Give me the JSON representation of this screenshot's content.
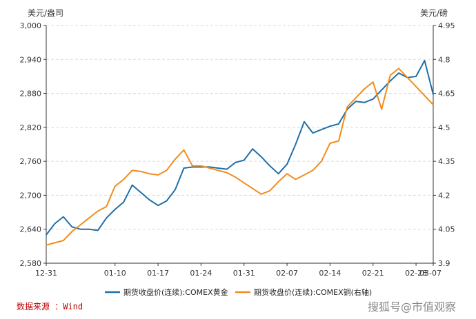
{
  "chart_data": {
    "type": "line",
    "title": "",
    "left_unit": "美元/盎司",
    "right_unit": "美元/磅",
    "source": "数据来源 ：Wind",
    "watermark": "搜狐号@市值观察",
    "x_ticks": [
      "12-31",
      "01-10",
      "01-17",
      "01-24",
      "01-31",
      "02-07",
      "02-14",
      "02-21",
      "02-28",
      "03-07"
    ],
    "x_count": 46,
    "x_tick_index": [
      0,
      8,
      13,
      18,
      23,
      28,
      33,
      38,
      43,
      45
    ],
    "y_left": {
      "min": 2580,
      "max": 3000,
      "ticks": [
        "2,580",
        "2,640",
        "2,700",
        "2,760",
        "2,820",
        "2,880",
        "2,940",
        "3,000"
      ]
    },
    "y_right": {
      "min": 3.9,
      "max": 4.95,
      "ticks": [
        "3.9",
        "4.05",
        "4.2",
        "4.35",
        "4.5",
        "4.65",
        "4.8",
        "4.95"
      ]
    },
    "grid": true,
    "legend_position": "bottom",
    "colors": {
      "gold": "#1f6fa8",
      "copper": "#f28c1c"
    },
    "series": [
      {
        "name": "期货收盘价(连续):COMEX黄金",
        "axis": "left",
        "color": "#1f6fa8",
        "values": [
          2630,
          2650,
          2662,
          2644,
          2640,
          2640,
          2638,
          2660,
          2675,
          2688,
          2718,
          2705,
          2692,
          2682,
          2690,
          2710,
          2748,
          2750,
          2750,
          2750,
          2748,
          2746,
          2758,
          2762,
          2782,
          2768,
          2752,
          2738,
          2755,
          2790,
          2830,
          2810,
          2816,
          2822,
          2826,
          2852,
          2866,
          2864,
          2870,
          2886,
          2902,
          2916,
          2908,
          2910,
          2938,
          2878
        ]
      },
      {
        "name": "期货收盘价(连续):COMEX铜(右轴)",
        "axis": "right",
        "color": "#f28c1c",
        "values": [
          3.98,
          3.99,
          4.0,
          4.04,
          4.07,
          4.1,
          4.13,
          4.15,
          4.24,
          4.27,
          4.31,
          4.305,
          4.295,
          4.29,
          4.31,
          4.36,
          4.4,
          4.33,
          4.33,
          4.32,
          4.31,
          4.3,
          4.28,
          4.255,
          4.23,
          4.205,
          4.22,
          4.26,
          4.295,
          4.27,
          4.29,
          4.31,
          4.35,
          4.43,
          4.44,
          4.59,
          4.63,
          4.67,
          4.7,
          4.58,
          4.73,
          4.76,
          4.72,
          4.68,
          4.64,
          4.6
        ]
      }
    ]
  }
}
